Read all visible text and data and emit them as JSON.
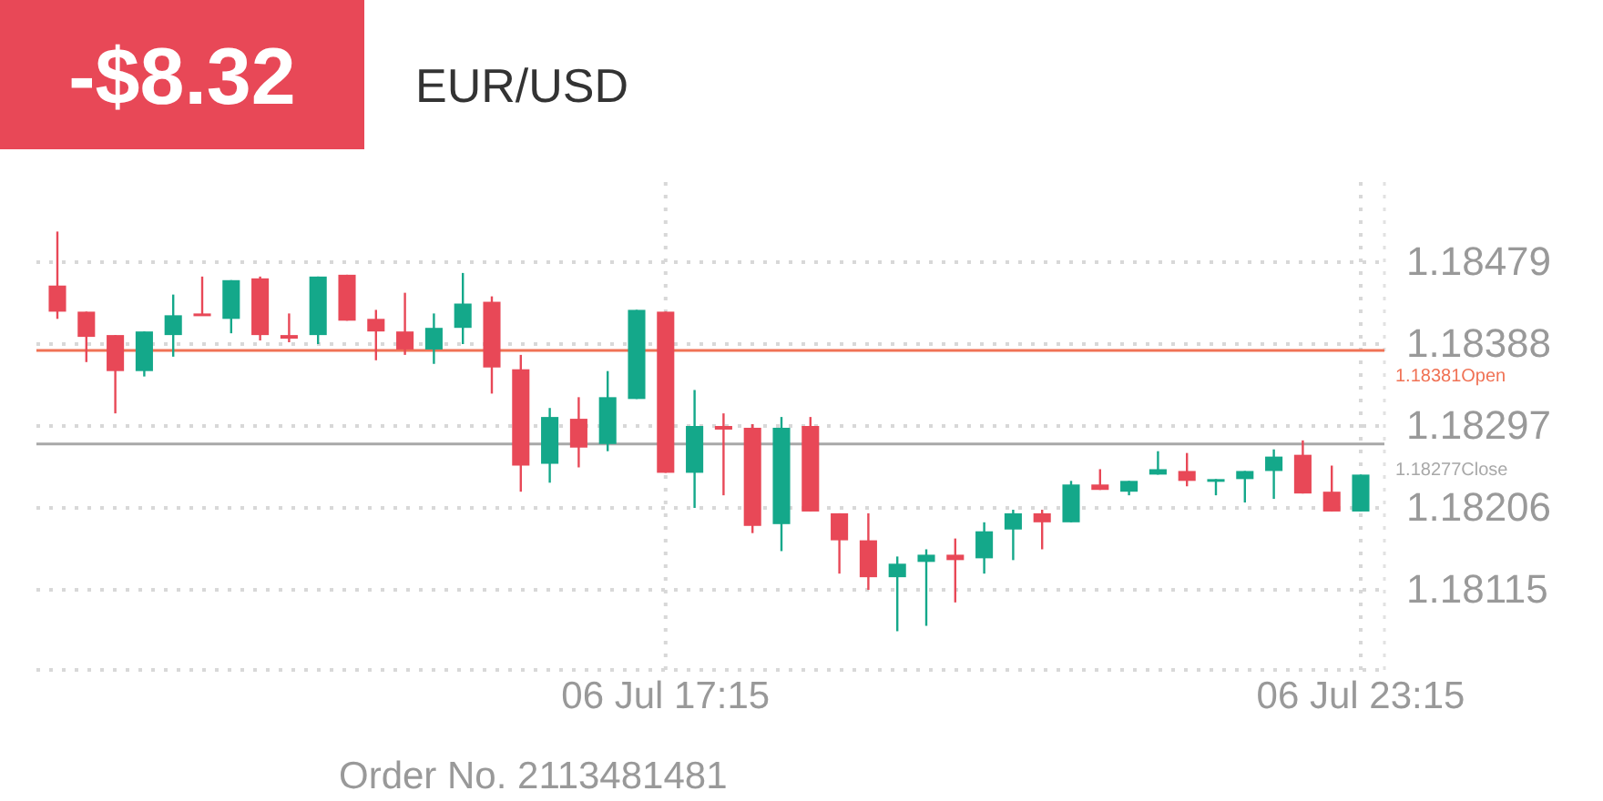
{
  "chart_data": {
    "type": "candlestick",
    "title": "EUR/USD",
    "annotations": [
      "-$8.32",
      "Order No. 2113481481"
    ],
    "categories": [
      null,
      null,
      null,
      null,
      null,
      null,
      null,
      null,
      null,
      null,
      null,
      null,
      null,
      null,
      null,
      null,
      null,
      null,
      null,
      null,
      null,
      "06 Jul 17:15",
      null,
      null,
      null,
      null,
      null,
      null,
      null,
      null,
      null,
      null,
      null,
      null,
      null,
      null,
      null,
      null,
      null,
      null,
      null,
      null,
      null,
      null,
      null,
      "06 Jul 23:15"
    ],
    "ohlc": [
      [
        1.18453,
        1.18513,
        1.18416,
        1.18424
      ],
      [
        1.18424,
        1.18424,
        1.18368,
        1.18396
      ],
      [
        1.18398,
        1.18398,
        1.18311,
        1.18358
      ],
      [
        1.18358,
        1.18402,
        1.18352,
        1.18402
      ],
      [
        1.18398,
        1.18443,
        1.18374,
        1.1842
      ],
      [
        1.18422,
        1.18463,
        1.1842,
        1.1842
      ],
      [
        1.18416,
        1.18459,
        1.184,
        1.18459
      ],
      [
        1.18461,
        1.18463,
        1.18392,
        1.18398
      ],
      [
        1.18398,
        1.18422,
        1.1839,
        1.18394
      ],
      [
        1.18398,
        1.18463,
        1.18388,
        1.18463
      ],
      [
        1.18465,
        1.18465,
        1.18414,
        1.18414
      ],
      [
        1.18416,
        1.18426,
        1.1837,
        1.18402
      ],
      [
        1.18402,
        1.18445,
        1.18376,
        1.18382
      ],
      [
        1.18382,
        1.18422,
        1.18366,
        1.18406
      ],
      [
        1.18406,
        1.18467,
        1.18388,
        1.18433
      ],
      [
        1.18435,
        1.18441,
        1.18333,
        1.18362
      ],
      [
        1.1836,
        1.18376,
        1.18224,
        1.18253
      ],
      [
        1.18255,
        1.18317,
        1.18234,
        1.18307
      ],
      [
        1.18305,
        1.18329,
        1.18251,
        1.18273
      ],
      [
        1.18277,
        1.18358,
        1.18269,
        1.18329
      ],
      [
        1.18327,
        1.18426,
        1.18327,
        1.18426
      ],
      [
        1.18424,
        1.18424,
        1.18245,
        1.18245
      ],
      [
        1.18245,
        1.18337,
        1.18206,
        1.18297
      ],
      [
        1.18297,
        1.18311,
        1.1822,
        1.18293
      ],
      [
        1.18295,
        1.18299,
        1.18178,
        1.18186
      ],
      [
        1.18188,
        1.18307,
        1.18158,
        1.18295
      ],
      [
        1.18297,
        1.18307,
        1.18202,
        1.18202
      ],
      [
        1.182,
        1.182,
        1.18133,
        1.1817
      ],
      [
        1.1817,
        1.182,
        1.18115,
        1.18129
      ],
      [
        1.18129,
        1.18152,
        1.18069,
        1.18144
      ],
      [
        1.18146,
        1.1816,
        1.18075,
        1.18154
      ],
      [
        1.18154,
        1.18172,
        1.18101,
        1.18148
      ],
      [
        1.1815,
        1.1819,
        1.18133,
        1.1818
      ],
      [
        1.18182,
        1.18204,
        1.18148,
        1.182
      ],
      [
        1.182,
        1.18204,
        1.1816,
        1.1819
      ],
      [
        1.1819,
        1.18236,
        1.1819,
        1.18232
      ],
      [
        1.18232,
        1.18249,
        1.18226,
        1.18226
      ],
      [
        1.18224,
        1.18236,
        1.1822,
        1.18236
      ],
      [
        1.18243,
        1.18269,
        1.18243,
        1.18249
      ],
      [
        1.18247,
        1.18267,
        1.1823,
        1.18236
      ],
      [
        1.18236,
        1.18238,
        1.1822,
        1.18238
      ],
      [
        1.18238,
        1.18247,
        1.18212,
        1.18247
      ],
      [
        1.18247,
        1.18271,
        1.18216,
        1.18263
      ],
      [
        1.18265,
        1.18281,
        1.18222,
        1.18222
      ],
      [
        1.18224,
        1.18253,
        1.18202,
        1.18202
      ],
      [
        1.18202,
        1.18243,
        1.18202,
        1.18243
      ]
    ],
    "colors": [
      "#e84857",
      "#e84857",
      "#e84857",
      "#14a88a",
      "#14a88a",
      "#e84857",
      "#14a88a",
      "#e84857",
      "#e84857",
      "#14a88a",
      "#e84857",
      "#e84857",
      "#e84857",
      "#14a88a",
      "#14a88a",
      "#e84857",
      "#e84857",
      "#14a88a",
      "#e84857",
      "#14a88a",
      "#14a88a",
      "#e84857",
      "#14a88a",
      "#e84857",
      "#e84857",
      "#14a88a",
      "#e84857",
      "#e84857",
      "#e84857",
      "#14a88a",
      "#14a88a",
      "#e84857",
      "#14a88a",
      "#14a88a",
      "#e84857",
      "#14a88a",
      "#e84857",
      "#14a88a",
      "#14a88a",
      "#e84857",
      "#14a88a",
      "#14a88a",
      "#14a88a",
      "#e84857",
      "#e84857",
      "#14a88a"
    ],
    "ylim": [
      1.18026,
      1.18568
    ],
    "yticks": [
      1.18115,
      1.18206,
      1.18297,
      1.18388,
      1.18479
    ],
    "ref_lines": [
      {
        "axis": "y",
        "value": 1.18381,
        "label": "1.18381Open",
        "color": "#f07255"
      },
      {
        "axis": "y",
        "value": 1.18277,
        "label": "1.18277Close",
        "color": "#a8a8a8"
      }
    ],
    "grid": true
  }
}
